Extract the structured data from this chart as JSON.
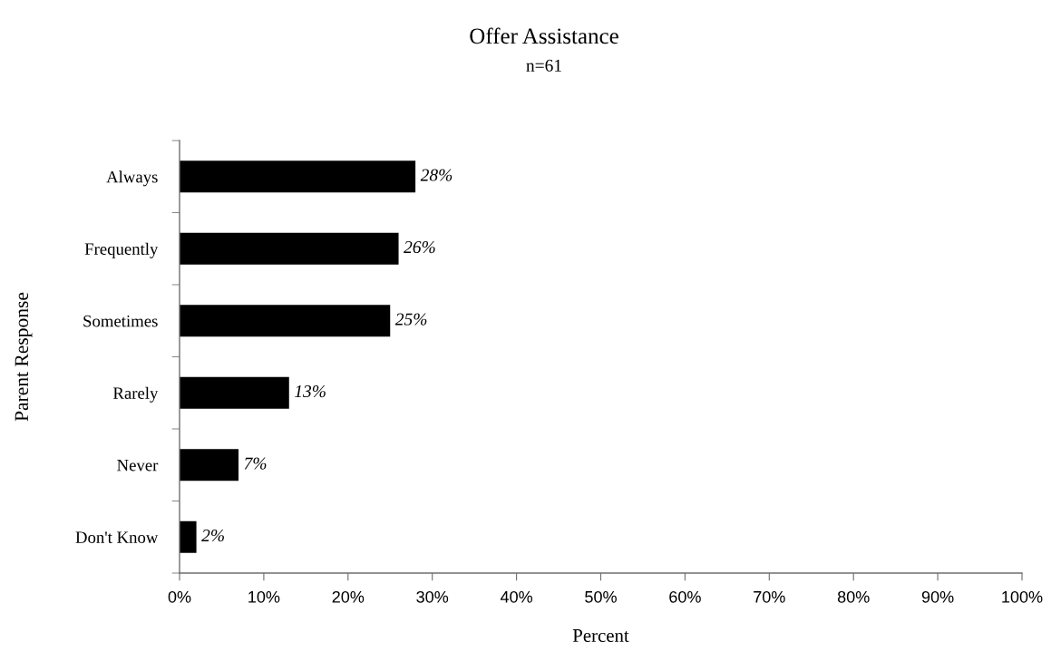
{
  "chart_data": {
    "type": "bar",
    "orientation": "horizontal",
    "title": "Offer Assistance",
    "subtitle": "n=61",
    "xlabel": "Percent",
    "ylabel": "Parent Response",
    "categories": [
      "Always",
      "Frequently",
      "Sometimes",
      "Rarely",
      "Never",
      "Don't Know"
    ],
    "values": [
      28,
      26,
      25,
      13,
      7,
      2
    ],
    "value_labels": [
      "28%",
      "26%",
      "25%",
      "13%",
      "7%",
      "2%"
    ],
    "color": "#000000",
    "xlim": [
      0,
      100
    ],
    "xticks": [
      {
        "value": 0,
        "label": "0%"
      },
      {
        "value": 10,
        "label": "10%"
      },
      {
        "value": 20,
        "label": "20%"
      },
      {
        "value": 30,
        "label": "30%"
      },
      {
        "value": 40,
        "label": "40%"
      },
      {
        "value": 50,
        "label": "50%"
      },
      {
        "value": 60,
        "label": "60%"
      },
      {
        "value": 70,
        "label": "70%"
      },
      {
        "value": 80,
        "label": "80%"
      },
      {
        "value": 90,
        "label": "90%"
      },
      {
        "value": 100,
        "label": "100%"
      }
    ]
  }
}
